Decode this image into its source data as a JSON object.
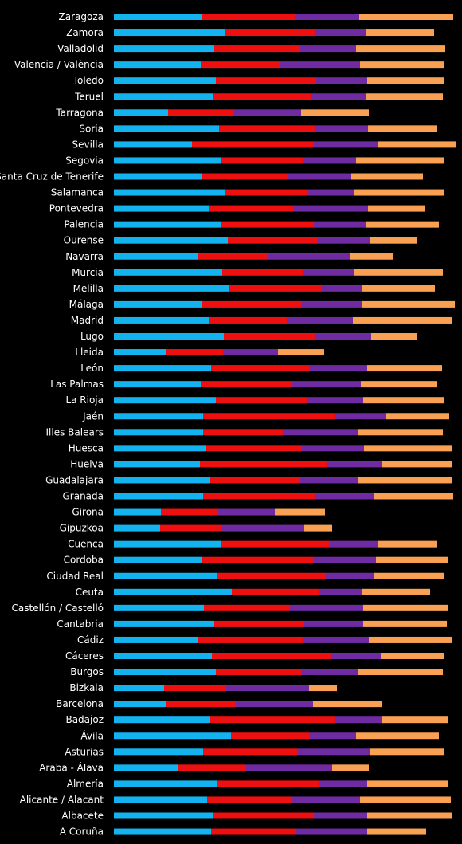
{
  "chart_data": {
    "type": "bar",
    "orientation": "horizontal",
    "stacked": true,
    "grid": false,
    "legend": "none",
    "categories": [
      "Zaragoza",
      "Zamora",
      "Valladolid",
      "Valencia / València",
      "Toledo",
      "Teruel",
      "Tarragona",
      "Soria",
      "Sevilla",
      "Segovia",
      "Santa Cruz de Tenerife",
      "Salamanca",
      "Pontevedra",
      "Palencia",
      "Ourense",
      "Navarra",
      "Murcia",
      "Melilla",
      "Málaga",
      "Madrid",
      "Lugo",
      "Lleida",
      "León",
      "Las Palmas",
      "La Rioja",
      "Jaén",
      "Illes Balears",
      "Huesca",
      "Huelva",
      "Guadalajara",
      "Granada",
      "Girona",
      "Gipuzkoa",
      "Cuenca",
      "Cordoba",
      "Ciudad Real",
      "Ceuta",
      "Castellón / Castelló",
      "Cantabria",
      "Cádiz",
      "Cáceres",
      "Burgos",
      "Bizkaia",
      "Barcelona",
      "Badajoz",
      "Ávila",
      "Asturias",
      "Araba - Álava",
      "Almería",
      "Alicante / Alacant",
      "Albacete",
      "A Coruña"
    ],
    "xlim": [
      0,
      424
    ],
    "series": [
      {
        "color": "#13b3f0",
        "values": [
          111,
          140,
          126,
          109,
          128,
          124,
          68,
          132,
          98,
          134,
          110,
          140,
          119,
          134,
          143,
          105,
          136,
          144,
          110,
          119,
          138,
          65,
          122,
          109,
          128,
          112,
          112,
          115,
          108,
          121,
          112,
          59,
          58,
          135,
          110,
          130,
          148,
          113,
          126,
          106,
          123,
          128,
          63,
          65,
          121,
          147,
          112,
          81,
          130,
          117,
          124,
          122
        ]
      },
      {
        "color": "#ee0f11",
        "values": [
          116,
          113,
          108,
          100,
          126,
          123,
          82,
          121,
          152,
          104,
          108,
          104,
          106,
          117,
          112,
          89,
          102,
          117,
          125,
          98,
          114,
          72,
          123,
          114,
          115,
          166,
          100,
          121,
          159,
          112,
          141,
          72,
          77,
          135,
          140,
          135,
          109,
          108,
          113,
          132,
          149,
          107,
          78,
          88,
          157,
          98,
          118,
          84,
          128,
          106,
          127,
          106
        ]
      },
      {
        "color": "#6f2ba2",
        "values": [
          81,
          63,
          70,
          100,
          64,
          69,
          85,
          66,
          82,
          66,
          80,
          58,
          94,
          65,
          67,
          103,
          63,
          51,
          77,
          83,
          71,
          69,
          73,
          87,
          70,
          64,
          95,
          78,
          69,
          74,
          74,
          71,
          104,
          61,
          79,
          62,
          54,
          92,
          74,
          82,
          63,
          72,
          104,
          97,
          59,
          59,
          91,
          109,
          60,
          86,
          67,
          90
        ]
      },
      {
        "color": "#f9a053",
        "values": [
          118,
          86,
          112,
          106,
          96,
          97,
          85,
          86,
          98,
          110,
          90,
          113,
          71,
          92,
          59,
          53,
          112,
          91,
          116,
          125,
          58,
          58,
          94,
          96,
          102,
          79,
          106,
          111,
          88,
          118,
          99,
          63,
          35,
          74,
          90,
          88,
          86,
          106,
          105,
          104,
          80,
          106,
          35,
          87,
          82,
          104,
          93,
          46,
          101,
          114,
          106,
          74
        ]
      }
    ]
  }
}
